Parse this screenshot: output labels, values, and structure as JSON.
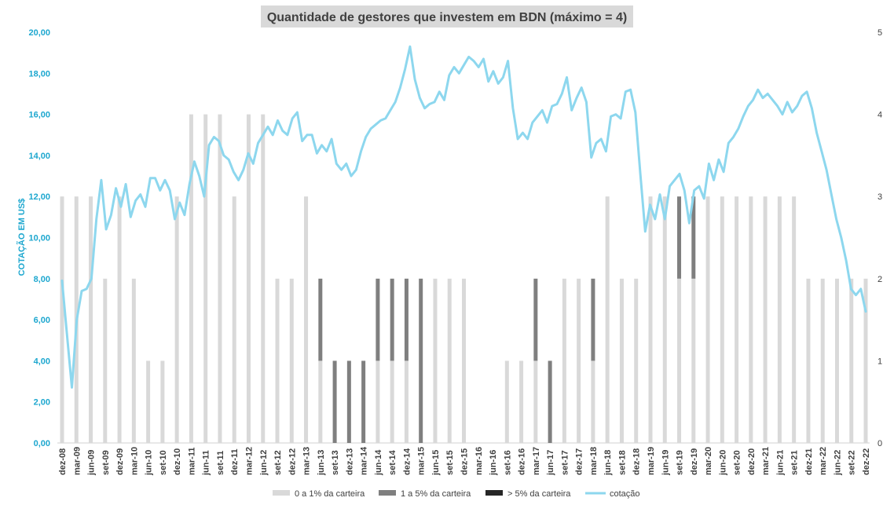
{
  "chart_data": {
    "type": "bar",
    "title": "Quantidade de gestores que investem em BDN (máximo = 4)",
    "ylabel_left": "COTAÇÃO EM US$",
    "left_axis": {
      "min": 0,
      "max": 20,
      "step": 2,
      "ticks": [
        "0,00",
        "2,00",
        "4,00",
        "6,00",
        "8,00",
        "10,00",
        "12,00",
        "14,00",
        "16,00",
        "18,00",
        "20,00"
      ]
    },
    "right_axis": {
      "min": 0,
      "max": 5,
      "step": 1,
      "ticks": [
        "0",
        "1",
        "2",
        "3",
        "4",
        "5"
      ]
    },
    "grid": false,
    "legend_position": "bottom",
    "colors": {
      "s0": "#d9d9d9",
      "s1": "#7f7f7f",
      "s2": "#262626",
      "line": "#8dd7ee",
      "axis_left": "#1da7cf"
    },
    "x_labels": [
      "dez-08",
      "mar-09",
      "jun-09",
      "set-09",
      "dez-09",
      "mar-10",
      "jun-10",
      "set-10",
      "dez-10",
      "mar-11",
      "jun-11",
      "set-11",
      "dez-11",
      "mar-12",
      "jun-12",
      "set-12",
      "dez-12",
      "mar-13",
      "jun-13",
      "set-13",
      "dez-13",
      "mar-14",
      "jun-14",
      "set-14",
      "dez-14",
      "mar-15",
      "jun-15",
      "set-15",
      "dez-15",
      "mar-16",
      "jun-16",
      "set-16",
      "dez-16",
      "mar-17",
      "jun-17",
      "set-17",
      "dez-17",
      "mar-18",
      "jun-18",
      "set-18",
      "dez-18",
      "mar-19",
      "jun-19",
      "set-19",
      "dez-19",
      "mar-20",
      "jun-20",
      "set-20",
      "dez-20",
      "mar-21",
      "jun-21",
      "set-21",
      "dez-21",
      "mar-22",
      "jun-22",
      "set-22",
      "dez-22"
    ],
    "series": [
      {
        "name": "0 a 1% da carteira",
        "axis": "right",
        "kind": "bar",
        "values": [
          3,
          3,
          3,
          2,
          3,
          2,
          1,
          1,
          3,
          4,
          4,
          4,
          3,
          4,
          4,
          2,
          2,
          3,
          1,
          0,
          0,
          0,
          1,
          1,
          1,
          0,
          2,
          2,
          2,
          0,
          0,
          1,
          1,
          1,
          0,
          2,
          2,
          1,
          3,
          2,
          2,
          3,
          3,
          2,
          2,
          3,
          3,
          3,
          3,
          3,
          3,
          3,
          2,
          2,
          2,
          2,
          2
        ]
      },
      {
        "name": "1 a 5% da carteira",
        "axis": "right",
        "kind": "bar",
        "values": [
          0,
          0,
          0,
          0,
          0,
          0,
          0,
          0,
          0,
          0,
          0,
          0,
          0,
          0,
          0,
          0,
          0,
          0,
          1,
          1,
          1,
          1,
          1,
          1,
          1,
          2,
          0,
          0,
          0,
          0,
          0,
          0,
          0,
          1,
          1,
          0,
          0,
          1,
          0,
          0,
          0,
          0,
          0,
          1,
          1,
          0,
          0,
          0,
          0,
          0,
          0,
          0,
          0,
          0,
          0,
          0,
          0
        ]
      },
      {
        "name": "> 5% da carteira",
        "axis": "right",
        "kind": "bar",
        "values": [
          0,
          0,
          0,
          0,
          0,
          0,
          0,
          0,
          0,
          0,
          0,
          0,
          0,
          0,
          0,
          0,
          0,
          0,
          0,
          0,
          0,
          0,
          0,
          0,
          0,
          0,
          0,
          0,
          0,
          0,
          0,
          0,
          0,
          0,
          0,
          0,
          0,
          0,
          0,
          0,
          0,
          0,
          0,
          0,
          0,
          0,
          0,
          0,
          0,
          0,
          0,
          0,
          0,
          0,
          0,
          0,
          0
        ]
      },
      {
        "name": "cotação",
        "axis": "left",
        "kind": "line",
        "values": [
          7.9,
          5.3,
          2.7,
          6.0,
          7.4,
          7.5,
          8.0,
          10.9,
          12.8,
          10.4,
          11.1,
          12.4,
          11.5,
          12.6,
          11.0,
          11.8,
          12.1,
          11.5,
          12.9,
          12.9,
          12.3,
          12.8,
          12.3,
          10.9,
          11.7,
          11.1,
          12.6,
          13.7,
          13.0,
          12.0,
          14.5,
          14.9,
          14.7,
          14.0,
          13.8,
          13.2,
          12.8,
          13.3,
          14.1,
          13.6,
          14.6,
          15.0,
          15.4,
          15.0,
          15.7,
          15.2,
          15.0,
          15.8,
          16.1,
          14.7,
          15.0,
          15.0,
          14.1,
          14.5,
          14.2,
          14.8,
          13.6,
          13.3,
          13.6,
          13.0,
          13.3,
          14.2,
          14.9,
          15.3,
          15.5,
          15.7,
          15.8,
          16.2,
          16.6,
          17.3,
          18.2,
          19.3,
          17.7,
          16.8,
          16.3,
          16.5,
          16.6,
          17.1,
          16.7,
          17.9,
          18.3,
          18.0,
          18.4,
          18.8,
          18.6,
          18.3,
          18.7,
          17.6,
          18.1,
          17.5,
          17.8,
          18.6,
          16.3,
          14.8,
          15.1,
          14.8,
          15.6,
          15.9,
          16.2,
          15.6,
          16.4,
          16.5,
          17.0,
          17.8,
          16.2,
          16.8,
          17.3,
          16.6,
          13.9,
          14.6,
          14.8,
          14.2,
          15.9,
          16.0,
          15.8,
          17.1,
          17.2,
          16.1,
          13.1,
          10.3,
          11.6,
          10.9,
          12.1,
          10.9,
          12.5,
          12.8,
          13.1,
          12.3,
          10.7,
          12.3,
          12.5,
          11.9,
          13.6,
          12.8,
          13.8,
          13.2,
          14.6,
          14.9,
          15.3,
          15.9,
          16.4,
          16.7,
          17.2,
          16.8,
          17.0,
          16.7,
          16.4,
          16.0,
          16.6,
          16.1,
          16.4,
          16.9,
          17.1,
          16.3,
          15.1,
          14.2,
          13.3,
          12.1,
          10.9,
          10.0,
          8.9,
          7.5,
          7.2,
          7.5,
          6.4
        ]
      }
    ]
  }
}
